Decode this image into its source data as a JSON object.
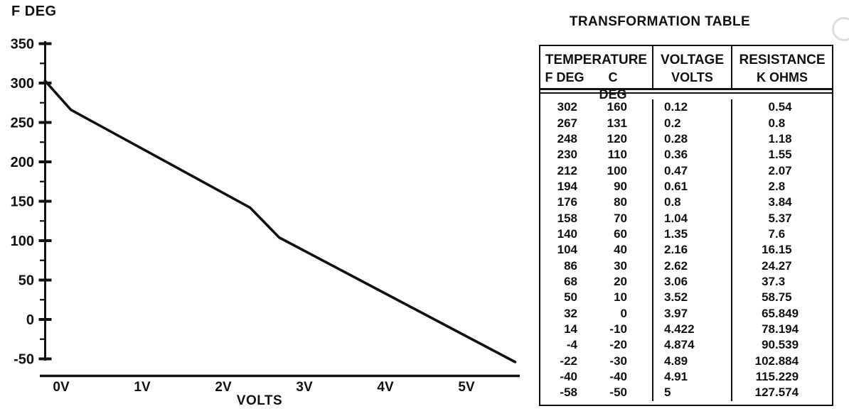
{
  "figure": {
    "background": "#ffffff",
    "ink_color": "#111111"
  },
  "chart": {
    "y_axis_title": "F DEG",
    "x_axis_title": "VOLTS"
  },
  "chart_data": {
    "type": "line",
    "title": "",
    "xlabel": "VOLTS",
    "ylabel": "F DEG",
    "x_tick_labels": [
      "0V",
      "1V",
      "2V",
      "3V",
      "4V",
      "5V"
    ],
    "x_tick_values": [
      0,
      1,
      2,
      3,
      4,
      5
    ],
    "y_tick_values": [
      350,
      300,
      250,
      200,
      150,
      100,
      50,
      0,
      -50
    ],
    "y_minor_tick_values": [
      325,
      275,
      225,
      175,
      125,
      75,
      25,
      -25
    ],
    "xlim": [
      -0.26,
      5.66
    ],
    "ylim": [
      -58,
      360
    ],
    "grid": false,
    "legend": "none",
    "series": [
      {
        "name": "Temperature F DEG vs VOLTS",
        "x": [
          0.12,
          0.2,
          0.28,
          0.36,
          0.47,
          0.61,
          0.8,
          1.04,
          1.35,
          2.16,
          2.62,
          3.06,
          3.52,
          3.97,
          4.422,
          4.874,
          4.89,
          4.91,
          5
        ],
        "y": [
          302,
          267,
          248,
          230,
          212,
          194,
          176,
          158,
          140,
          104,
          86,
          68,
          50,
          32,
          14,
          -4,
          -22,
          -40,
          -58
        ]
      }
    ],
    "drawn_line_points": [
      [
        -0.2,
        303
      ],
      [
        0.12,
        266
      ],
      [
        2.33,
        142
      ],
      [
        2.69,
        104
      ],
      [
        5.6,
        -54
      ]
    ]
  },
  "table": {
    "title": "TRANSFORMATION TABLE",
    "headers": {
      "temperature": {
        "title": "TEMPERATURE",
        "sub_left": "F DEG",
        "sub_right": "C DEG"
      },
      "voltage": {
        "title": "VOLTAGE",
        "sub": "VOLTS"
      },
      "resistance": {
        "title": "RESISTANCE",
        "sub": "K OHMS"
      }
    },
    "rows": [
      {
        "f": "302",
        "c": "160",
        "volts": "0.12",
        "k_ohms": "0.54"
      },
      {
        "f": "267",
        "c": "131",
        "volts": "0.2",
        "k_ohms": "0.8"
      },
      {
        "f": "248",
        "c": "120",
        "volts": "0.28",
        "k_ohms": "1.18"
      },
      {
        "f": "230",
        "c": "110",
        "volts": "0.36",
        "k_ohms": "1.55"
      },
      {
        "f": "212",
        "c": "100",
        "volts": "0.47",
        "k_ohms": "2.07"
      },
      {
        "f": "194",
        "c": "90",
        "volts": "0.61",
        "k_ohms": "2.8"
      },
      {
        "f": "176",
        "c": "80",
        "volts": "0.8",
        "k_ohms": "3.84"
      },
      {
        "f": "158",
        "c": "70",
        "volts": "1.04",
        "k_ohms": "5.37"
      },
      {
        "f": "140",
        "c": "60",
        "volts": "1.35",
        "k_ohms": "7.6"
      },
      {
        "f": "104",
        "c": "40",
        "volts": "2.16",
        "k_ohms": "16.15"
      },
      {
        "f": "86",
        "c": "30",
        "volts": "2.62",
        "k_ohms": "24.27"
      },
      {
        "f": "68",
        "c": "20",
        "volts": "3.06",
        "k_ohms": "37.3"
      },
      {
        "f": "50",
        "c": "10",
        "volts": "3.52",
        "k_ohms": "58.75"
      },
      {
        "f": "32",
        "c": "0",
        "volts": "3.97",
        "k_ohms": "65.849"
      },
      {
        "f": "14",
        "c": "-10",
        "volts": "4.422",
        "k_ohms": "78.194"
      },
      {
        "f": "-4",
        "c": "-20",
        "volts": "4.874",
        "k_ohms": "90.539"
      },
      {
        "f": "-22",
        "c": "-30",
        "volts": "4.89",
        "k_ohms": "102.884"
      },
      {
        "f": "-40",
        "c": "-40",
        "volts": "4.91",
        "k_ohms": "115.229"
      },
      {
        "f": "-58",
        "c": "-50",
        "volts": "5",
        "k_ohms": "127.574"
      }
    ]
  }
}
